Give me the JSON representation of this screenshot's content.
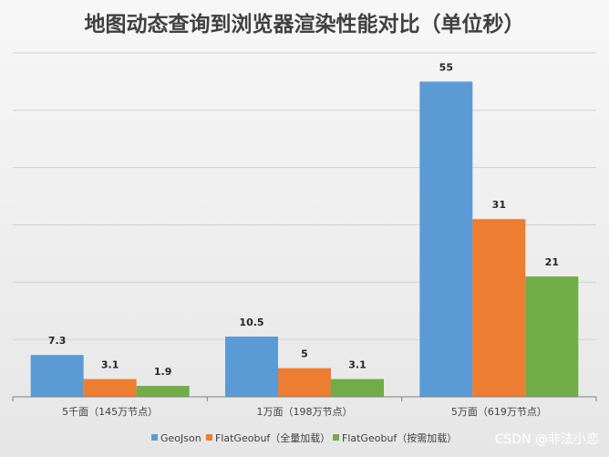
{
  "chart_data": {
    "type": "bar",
    "title": "地图动态查询到浏览器渲染性能对比（单位秒）",
    "categories": [
      "5千面（145万节点）",
      "1万面（198万节点）",
      "5万面（619万节点）"
    ],
    "series": [
      {
        "name": "GeoJson",
        "values": [
          7.3,
          10.5,
          55
        ],
        "color": "#5b9bd5"
      },
      {
        "name": "FlatGeobuf（全量加载）",
        "values": [
          3.1,
          5,
          31
        ],
        "color": "#ed7d31"
      },
      {
        "name": "FlatGeobuf（按需加载）",
        "values": [
          1.9,
          3.1,
          21
        ],
        "color": "#70ad47"
      }
    ],
    "ylim": [
      0,
      60
    ],
    "y_gridline_step": 10,
    "y_tick_labels_shown": false,
    "grid": true,
    "legend_position": "bottom"
  },
  "watermark": "CSDN @非法小恋"
}
